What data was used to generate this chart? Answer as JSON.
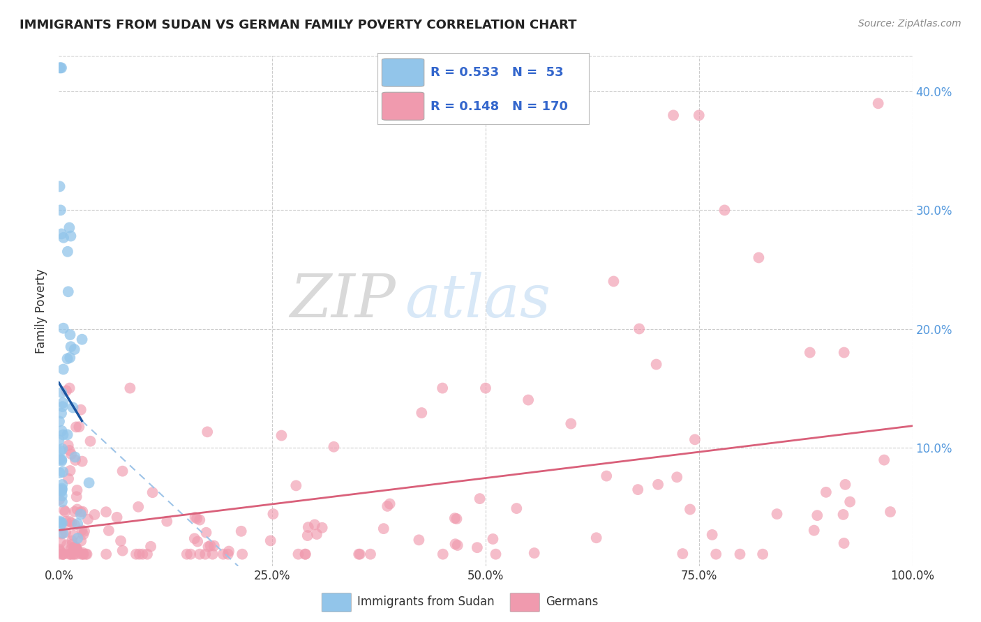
{
  "title": "IMMIGRANTS FROM SUDAN VS GERMAN FAMILY POVERTY CORRELATION CHART",
  "source": "Source: ZipAtlas.com",
  "ylabel": "Family Poverty",
  "legend_label1": "Immigrants from Sudan",
  "legend_label2": "Germans",
  "r1": 0.533,
  "n1": 53,
  "r2": 0.148,
  "n2": 170,
  "color_blue": "#92C5EA",
  "color_pink": "#F09AAE",
  "line_blue": "#1A55A0",
  "line_pink": "#D9607A",
  "dash_color": "#9EC4E8",
  "background": "#FFFFFF",
  "grid_color": "#CCCCCC",
  "ytick_color": "#5599DD",
  "title_color": "#222222",
  "source_color": "#888888"
}
